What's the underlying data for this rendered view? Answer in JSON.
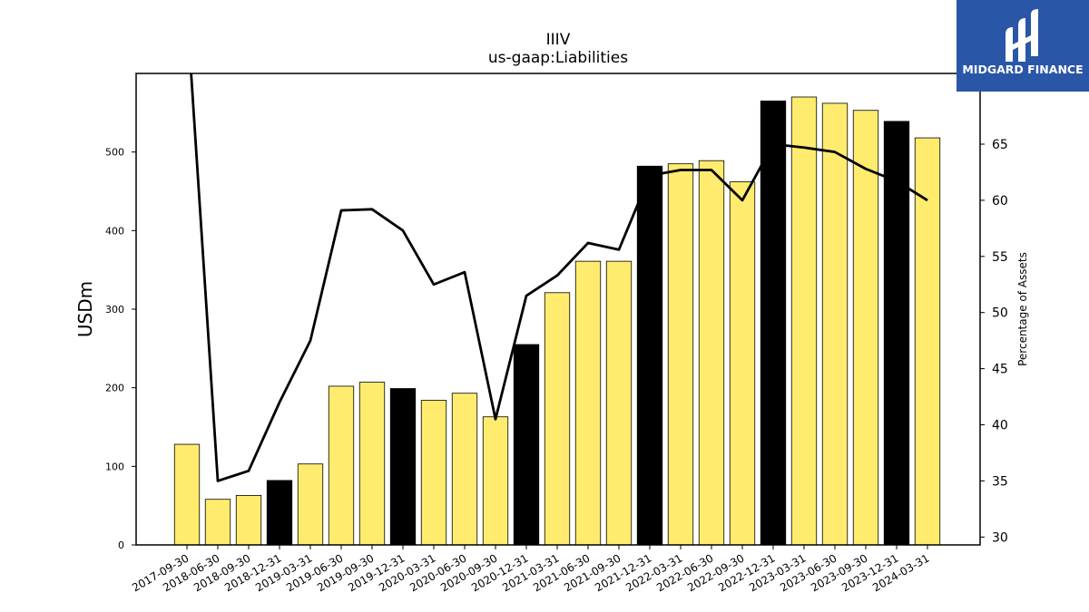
{
  "chart_data": {
    "type": "bar",
    "title": "IIIV",
    "subtitle": "us-gaap:Liabilities",
    "ylabel": "USDm",
    "y2label": "Percentage of Assets",
    "categories": [
      "2017-09-30",
      "2018-06-30",
      "2018-09-30",
      "2018-12-31",
      "2019-03-31",
      "2019-06-30",
      "2019-09-30",
      "2019-12-31",
      "2020-03-31",
      "2020-06-30",
      "2020-09-30",
      "2020-12-31",
      "2021-03-31",
      "2021-06-30",
      "2021-09-30",
      "2021-12-31",
      "2022-03-31",
      "2022-06-30",
      "2022-09-30",
      "2022-12-31",
      "2023-03-31",
      "2023-06-30",
      "2023-09-30",
      "2023-12-31",
      "2024-03-31"
    ],
    "series": [
      {
        "kind": "bar",
        "values": [
          128,
          58,
          63,
          82,
          103,
          202,
          207,
          199,
          184,
          193,
          163,
          255,
          321,
          361,
          361,
          482,
          485,
          489,
          462,
          565,
          570,
          562,
          553,
          539,
          518
        ],
        "colors": [
          "#FFEC6E",
          "#FFEC6E",
          "#FFEC6E",
          "#000000",
          "#FFEC6E",
          "#FFEC6E",
          "#FFEC6E",
          "#000000",
          "#FFEC6E",
          "#FFEC6E",
          "#FFEC6E",
          "#000000",
          "#FFEC6E",
          "#FFEC6E",
          "#FFEC6E",
          "#000000",
          "#FFEC6E",
          "#FFEC6E",
          "#FFEC6E",
          "#000000",
          "#FFEC6E",
          "#FFEC6E",
          "#FFEC6E",
          "#000000",
          "#FFEC6E"
        ]
      },
      {
        "kind": "line",
        "axis": "right",
        "values": [
          77,
          35,
          35.9,
          42,
          47.5,
          59.1,
          59.2,
          57.3,
          52.5,
          53.6,
          40.5,
          51.5,
          53.3,
          56.2,
          55.6,
          62.2,
          62.7,
          62.7,
          60,
          65,
          64.7,
          64.3,
          62.8,
          61.7,
          60
        ]
      }
    ],
    "ylim": [
      0,
      600
    ],
    "yticks": [
      0,
      100,
      200,
      300,
      400,
      500
    ],
    "y2lim": [
      29.3,
      71.3
    ],
    "y2ticks": [
      30,
      35,
      40,
      45,
      50,
      55,
      60,
      65
    ],
    "colors": {
      "bar": "#FFEC6E",
      "bar_highlight": "#000000",
      "line": "#000000"
    }
  },
  "logo": {
    "text": "MIDGARD FINANCE",
    "background": "#2A56A8"
  }
}
